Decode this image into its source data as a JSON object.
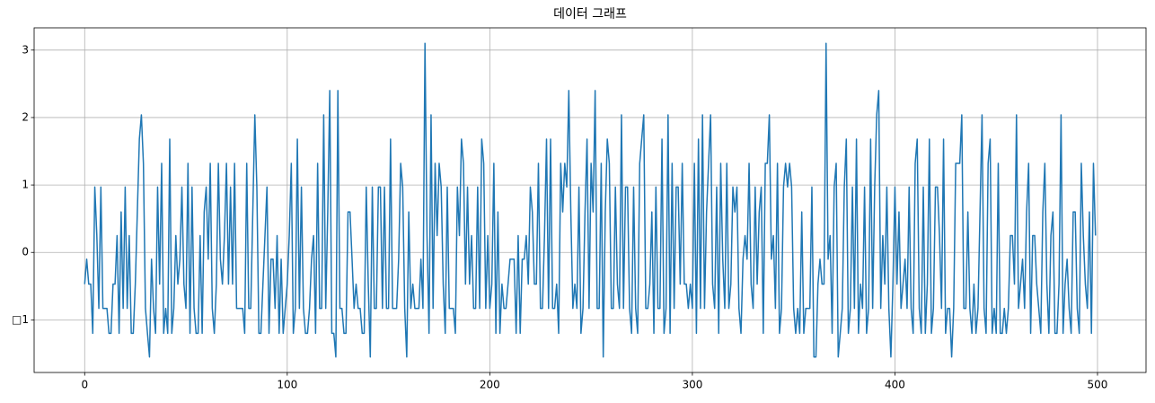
{
  "chart_data": {
    "type": "line",
    "title": "데이터 그래프",
    "color": "#1f77b4",
    "grid": true,
    "xlim": [
      -24.95,
      523.95
    ],
    "xticks": [
      0,
      100,
      200,
      300,
      400,
      500
    ],
    "ylim": [
      -1.78,
      3.33
    ],
    "yticks": [
      {
        "value": -1,
        "label": "□1"
      },
      0,
      1,
      2,
      3
    ],
    "values": [
      -0.47,
      -0.1,
      -0.47,
      -0.47,
      -1.2,
      0.97,
      0.25,
      -0.83,
      0.97,
      -0.83,
      -0.83,
      -0.83,
      -1.2,
      -1.2,
      -0.47,
      -0.47,
      0.25,
      -1.2,
      0.6,
      -0.83,
      0.97,
      -0.83,
      0.25,
      -1.2,
      -1.2,
      -0.47,
      0.6,
      1.68,
      2.04,
      1.32,
      -0.83,
      -1.2,
      -1.55,
      -0.1,
      -0.83,
      -1.2,
      0.97,
      -0.47,
      1.32,
      -1.2,
      -0.83,
      -1.2,
      1.68,
      -1.2,
      -0.83,
      0.25,
      -0.47,
      -0.1,
      0.97,
      -0.47,
      -0.83,
      1.32,
      -1.2,
      0.97,
      -0.83,
      -1.2,
      -1.2,
      0.25,
      -1.2,
      0.6,
      0.97,
      -0.1,
      1.32,
      -0.83,
      -1.2,
      -0.47,
      1.32,
      -0.1,
      -0.47,
      0.25,
      1.32,
      -0.47,
      0.97,
      -0.47,
      1.32,
      -0.83,
      -0.83,
      -0.83,
      -0.83,
      -1.2,
      1.32,
      -0.83,
      -0.83,
      0.6,
      2.04,
      0.97,
      -1.2,
      -1.2,
      -0.47,
      0.25,
      0.97,
      -1.2,
      -0.1,
      -0.1,
      -0.83,
      0.25,
      -1.2,
      -0.1,
      -1.2,
      -0.83,
      -0.47,
      0.25,
      1.32,
      -1.2,
      -0.83,
      1.68,
      -0.83,
      0.97,
      -0.83,
      -1.2,
      -1.2,
      -0.83,
      -0.1,
      0.25,
      -1.2,
      1.32,
      -0.83,
      -0.83,
      2.04,
      -0.83,
      0.6,
      2.4,
      -1.2,
      -1.2,
      -1.55,
      2.4,
      -0.83,
      -0.83,
      -1.2,
      -1.2,
      0.6,
      0.6,
      -0.1,
      -0.83,
      -0.47,
      -0.83,
      -0.83,
      -1.2,
      -1.2,
      0.97,
      -0.47,
      -1.55,
      0.97,
      -0.83,
      -0.83,
      0.97,
      0.97,
      -0.83,
      0.97,
      -0.83,
      -0.83,
      1.68,
      -0.83,
      -0.83,
      -0.83,
      -0.1,
      1.32,
      0.97,
      -0.83,
      -1.55,
      0.6,
      -0.83,
      -0.47,
      -0.83,
      -0.83,
      -0.83,
      -0.1,
      -0.83,
      3.1,
      0.25,
      -1.2,
      2.04,
      -0.83,
      1.32,
      0.25,
      1.32,
      0.97,
      -0.47,
      -1.2,
      0.97,
      -0.83,
      -0.83,
      -0.83,
      -1.2,
      0.97,
      0.25,
      1.68,
      1.32,
      -0.47,
      0.97,
      -0.47,
      0.25,
      -0.83,
      -0.83,
      0.97,
      -0.83,
      1.68,
      1.32,
      -0.83,
      0.25,
      -0.83,
      -0.47,
      1.32,
      -1.2,
      0.6,
      -1.2,
      -0.47,
      -0.83,
      -0.83,
      -0.47,
      -0.1,
      -0.1,
      -0.1,
      -1.2,
      0.25,
      -1.2,
      -0.1,
      -0.1,
      0.25,
      -0.47,
      0.97,
      0.6,
      -0.47,
      -0.47,
      1.32,
      -0.83,
      -0.83,
      0.25,
      1.68,
      -0.83,
      1.68,
      -0.83,
      -0.83,
      -0.47,
      -1.2,
      1.32,
      0.6,
      1.32,
      0.97,
      2.4,
      0.6,
      -0.83,
      -0.47,
      -0.83,
      0.97,
      -1.2,
      -0.83,
      0.6,
      1.68,
      -0.83,
      1.32,
      0.6,
      2.4,
      -0.83,
      -0.83,
      1.32,
      -1.55,
      0.6,
      1.68,
      1.32,
      -0.83,
      -0.83,
      0.97,
      -0.47,
      -0.83,
      2.04,
      -0.83,
      0.97,
      0.97,
      -0.83,
      -1.2,
      0.97,
      -0.83,
      -1.2,
      1.32,
      1.68,
      2.04,
      -0.83,
      -0.83,
      -0.47,
      0.6,
      -1.2,
      0.97,
      -0.83,
      -0.83,
      1.68,
      -1.2,
      -0.83,
      2.04,
      -1.2,
      1.32,
      -0.83,
      0.97,
      0.97,
      -0.47,
      1.32,
      -0.47,
      -0.47,
      -0.83,
      -0.47,
      -0.83,
      1.32,
      -1.2,
      1.68,
      -0.83,
      2.04,
      -0.83,
      0.6,
      1.32,
      2.04,
      -0.47,
      -0.83,
      0.97,
      -1.2,
      1.32,
      -0.1,
      -0.83,
      1.32,
      -0.83,
      -0.47,
      0.97,
      0.6,
      0.97,
      -0.83,
      -1.2,
      -0.1,
      0.25,
      -0.1,
      1.32,
      -0.47,
      -0.83,
      0.97,
      -0.47,
      0.6,
      0.97,
      -1.2,
      1.32,
      1.32,
      2.04,
      -0.1,
      0.25,
      -0.83,
      1.32,
      -1.2,
      -0.83,
      0.97,
      1.32,
      0.97,
      1.32,
      0.97,
      -0.83,
      -1.2,
      -0.83,
      -1.2,
      0.6,
      -1.2,
      -0.83,
      -0.83,
      -0.83,
      0.97,
      -1.55,
      -1.55,
      -0.47,
      -0.1,
      -0.47,
      -0.47,
      3.1,
      -0.1,
      0.25,
      -1.2,
      0.97,
      1.32,
      -1.55,
      -1.2,
      -0.83,
      0.97,
      1.68,
      -1.2,
      -0.83,
      0.97,
      -0.83,
      1.68,
      -1.2,
      -0.47,
      -0.83,
      0.97,
      -1.2,
      -0.83,
      1.68,
      -0.83,
      0.97,
      2.04,
      2.4,
      -0.83,
      0.25,
      -0.47,
      0.97,
      -0.83,
      -1.55,
      -0.47,
      0.97,
      -0.47,
      0.6,
      -0.83,
      -0.47,
      -0.1,
      -0.83,
      0.97,
      -0.83,
      -1.2,
      1.32,
      1.68,
      -0.83,
      -1.2,
      0.97,
      -1.2,
      -0.47,
      1.68,
      -1.2,
      -0.83,
      0.97,
      0.97,
      0.25,
      -0.83,
      1.68,
      -1.2,
      -0.83,
      -0.83,
      -1.55,
      -0.83,
      1.32,
      1.32,
      1.32,
      2.04,
      -0.83,
      -0.83,
      0.6,
      -0.83,
      -1.2,
      -0.47,
      -1.2,
      -0.83,
      0.6,
      2.04,
      -0.83,
      -1.2,
      1.32,
      1.68,
      -1.2,
      -0.83,
      -1.2,
      1.32,
      -1.2,
      -1.2,
      -0.83,
      -1.2,
      -0.83,
      0.25,
      0.25,
      -0.47,
      2.04,
      -0.83,
      -0.47,
      -0.1,
      -0.83,
      0.6,
      1.32,
      -1.2,
      0.25,
      0.25,
      -0.47,
      -0.83,
      -1.2,
      0.6,
      1.32,
      -0.47,
      -1.2,
      0.25,
      0.6,
      -1.2,
      -1.2,
      -0.47,
      2.04,
      -1.2,
      -0.47,
      -0.1,
      -0.83,
      -1.2,
      0.6,
      0.6,
      -0.83,
      -1.2,
      1.32,
      0.25,
      -0.47,
      -0.83,
      0.6,
      -1.2,
      1.32,
      0.25
    ]
  }
}
